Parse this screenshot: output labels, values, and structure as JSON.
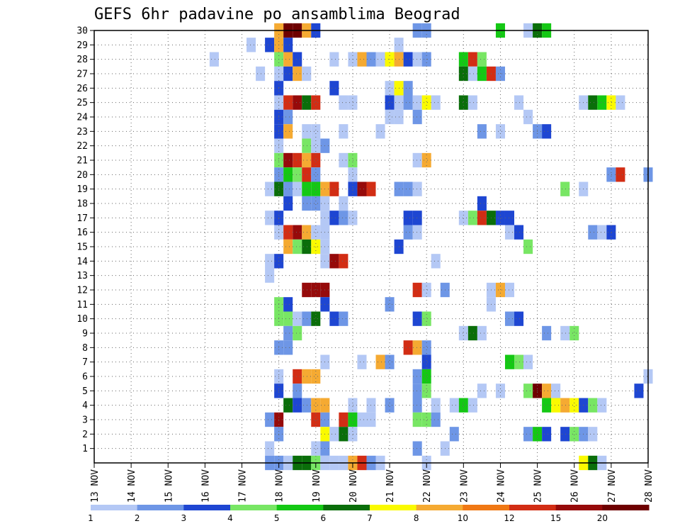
{
  "chart_data": {
    "type": "heatmap",
    "title": "GEFS 6hr padavine po ansamblima Beograd",
    "xlabel": "",
    "ylabel": "",
    "x_ticks": [
      "13 NOV",
      "14 NOV",
      "15 NOV",
      "16 NOV",
      "17 NOV",
      "18 NOV",
      "19 NOV",
      "20 NOV",
      "21 NOV",
      "22 NOV",
      "23 NOV",
      "24 NOV",
      "25 NOV",
      "26 NOV",
      "27 NOV",
      "28 NOV"
    ],
    "y_ticks": [
      "1",
      "2",
      "3",
      "4",
      "5",
      "6",
      "7",
      "8",
      "9",
      "10",
      "11",
      "12",
      "13",
      "14",
      "15",
      "16",
      "17",
      "18",
      "19",
      "20",
      "21",
      "22",
      "23",
      "24",
      "25",
      "26",
      "27",
      "28",
      "29",
      "30"
    ],
    "xlim": [
      0,
      60
    ],
    "ylim": [
      0,
      30
    ],
    "x_unit": "6-hour step from 13 NOV 00Z",
    "grid": true,
    "legend_position": "bottom",
    "legend_colors": [
      "#b4c8f5",
      "#6e96e6",
      "#1e46d2",
      "#78e664",
      "#14c814",
      "#0a6e0a",
      "#fafa00",
      "#f5aa32",
      "#f07814",
      "#d22d14",
      "#960a0a",
      "#6e0000"
    ],
    "legend_labels": [
      "1",
      "2",
      "3",
      "4",
      "5",
      "6",
      "7",
      "8",
      "10",
      "12",
      "15",
      "20"
    ],
    "cells": [
      [
        20,
        30,
        8
      ],
      [
        21,
        30,
        12
      ],
      [
        22,
        30,
        12
      ],
      [
        23,
        30,
        8
      ],
      [
        24,
        30,
        3
      ],
      [
        35,
        30,
        2
      ],
      [
        36,
        30,
        2
      ],
      [
        44,
        30,
        5
      ],
      [
        47,
        30,
        1
      ],
      [
        48,
        30,
        6
      ],
      [
        49,
        30,
        5
      ],
      [
        17,
        29,
        1
      ],
      [
        19,
        29,
        3
      ],
      [
        20,
        29,
        8
      ],
      [
        21,
        29,
        3
      ],
      [
        33,
        29,
        1
      ],
      [
        13,
        28,
        1
      ],
      [
        20,
        28,
        4
      ],
      [
        21,
        28,
        8
      ],
      [
        22,
        28,
        3
      ],
      [
        26,
        28,
        1
      ],
      [
        28,
        28,
        1
      ],
      [
        29,
        28,
        8
      ],
      [
        30,
        28,
        2
      ],
      [
        31,
        28,
        1
      ],
      [
        32,
        28,
        7
      ],
      [
        33,
        28,
        8
      ],
      [
        34,
        28,
        3
      ],
      [
        35,
        28,
        1
      ],
      [
        36,
        28,
        2
      ],
      [
        40,
        28,
        5
      ],
      [
        41,
        28,
        10
      ],
      [
        42,
        28,
        4
      ],
      [
        18,
        27,
        1
      ],
      [
        20,
        27,
        1
      ],
      [
        21,
        27,
        3
      ],
      [
        22,
        27,
        8
      ],
      [
        23,
        27,
        1
      ],
      [
        40,
        27,
        6
      ],
      [
        41,
        27,
        1
      ],
      [
        42,
        27,
        5
      ],
      [
        43,
        27,
        10
      ],
      [
        44,
        27,
        2
      ],
      [
        20,
        26,
        3
      ],
      [
        26,
        26,
        3
      ],
      [
        32,
        26,
        1
      ],
      [
        33,
        26,
        7
      ],
      [
        34,
        26,
        2
      ],
      [
        20,
        25,
        1
      ],
      [
        21,
        25,
        10
      ],
      [
        22,
        25,
        11
      ],
      [
        23,
        25,
        6
      ],
      [
        24,
        25,
        10
      ],
      [
        27,
        25,
        1
      ],
      [
        28,
        25,
        1
      ],
      [
        32,
        25,
        3
      ],
      [
        33,
        25,
        1
      ],
      [
        34,
        25,
        2
      ],
      [
        35,
        25,
        1
      ],
      [
        36,
        25,
        7
      ],
      [
        37,
        25,
        1
      ],
      [
        40,
        25,
        6
      ],
      [
        41,
        25,
        1
      ],
      [
        46,
        25,
        1
      ],
      [
        53,
        25,
        1
      ],
      [
        54,
        25,
        6
      ],
      [
        55,
        25,
        5
      ],
      [
        56,
        25,
        7
      ],
      [
        57,
        25,
        1
      ],
      [
        20,
        24,
        3
      ],
      [
        21,
        24,
        2
      ],
      [
        32,
        24,
        1
      ],
      [
        33,
        24,
        1
      ],
      [
        35,
        24,
        2
      ],
      [
        47,
        24,
        1
      ],
      [
        20,
        23,
        3
      ],
      [
        21,
        23,
        8
      ],
      [
        23,
        23,
        1
      ],
      [
        24,
        23,
        1
      ],
      [
        27,
        23,
        1
      ],
      [
        31,
        23,
        1
      ],
      [
        42,
        23,
        2
      ],
      [
        44,
        23,
        1
      ],
      [
        48,
        23,
        2
      ],
      [
        49,
        23,
        3
      ],
      [
        20,
        22,
        1
      ],
      [
        23,
        22,
        4
      ],
      [
        24,
        22,
        1
      ],
      [
        25,
        22,
        2
      ],
      [
        20,
        21,
        4
      ],
      [
        21,
        21,
        11
      ],
      [
        22,
        21,
        10
      ],
      [
        23,
        21,
        8
      ],
      [
        24,
        21,
        10
      ],
      [
        27,
        21,
        1
      ],
      [
        28,
        21,
        4
      ],
      [
        35,
        21,
        1
      ],
      [
        36,
        21,
        8
      ],
      [
        20,
        20,
        2
      ],
      [
        21,
        20,
        5
      ],
      [
        22,
        20,
        4
      ],
      [
        23,
        20,
        10
      ],
      [
        24,
        20,
        2
      ],
      [
        28,
        20,
        1
      ],
      [
        56,
        20,
        2
      ],
      [
        57,
        20,
        10
      ],
      [
        60,
        20,
        2
      ],
      [
        19,
        19,
        1
      ],
      [
        20,
        19,
        6
      ],
      [
        21,
        19,
        2
      ],
      [
        22,
        19,
        1
      ],
      [
        23,
        19,
        5
      ],
      [
        24,
        19,
        5
      ],
      [
        25,
        19,
        8
      ],
      [
        26,
        19,
        10
      ],
      [
        28,
        19,
        3
      ],
      [
        29,
        19,
        11
      ],
      [
        30,
        19,
        10
      ],
      [
        33,
        19,
        2
      ],
      [
        34,
        19,
        2
      ],
      [
        35,
        19,
        1
      ],
      [
        51,
        19,
        4
      ],
      [
        53,
        19,
        1
      ],
      [
        21,
        18,
        3
      ],
      [
        23,
        18,
        2
      ],
      [
        24,
        18,
        2
      ],
      [
        25,
        18,
        1
      ],
      [
        27,
        18,
        1
      ],
      [
        42,
        18,
        3
      ],
      [
        19,
        17,
        1
      ],
      [
        20,
        17,
        3
      ],
      [
        25,
        17,
        1
      ],
      [
        26,
        17,
        3
      ],
      [
        27,
        17,
        2
      ],
      [
        28,
        17,
        1
      ],
      [
        34,
        17,
        3
      ],
      [
        35,
        17,
        3
      ],
      [
        40,
        17,
        1
      ],
      [
        41,
        17,
        4
      ],
      [
        42,
        17,
        10
      ],
      [
        43,
        17,
        6
      ],
      [
        44,
        17,
        3
      ],
      [
        45,
        17,
        3
      ],
      [
        20,
        16,
        1
      ],
      [
        21,
        16,
        10
      ],
      [
        22,
        16,
        11
      ],
      [
        23,
        16,
        8
      ],
      [
        24,
        16,
        1
      ],
      [
        25,
        16,
        1
      ],
      [
        34,
        16,
        2
      ],
      [
        35,
        16,
        1
      ],
      [
        45,
        16,
        1
      ],
      [
        46,
        16,
        3
      ],
      [
        54,
        16,
        2
      ],
      [
        55,
        16,
        1
      ],
      [
        56,
        16,
        3
      ],
      [
        21,
        15,
        8
      ],
      [
        22,
        15,
        4
      ],
      [
        23,
        15,
        6
      ],
      [
        24,
        15,
        7
      ],
      [
        25,
        15,
        1
      ],
      [
        33,
        15,
        3
      ],
      [
        47,
        15,
        4
      ],
      [
        19,
        14,
        1
      ],
      [
        20,
        14,
        3
      ],
      [
        25,
        14,
        1
      ],
      [
        26,
        14,
        11
      ],
      [
        27,
        14,
        10
      ],
      [
        37,
        14,
        1
      ],
      [
        19,
        13,
        1
      ],
      [
        23,
        12,
        11
      ],
      [
        24,
        12,
        11
      ],
      [
        25,
        12,
        11
      ],
      [
        35,
        12,
        10
      ],
      [
        36,
        12,
        1
      ],
      [
        38,
        12,
        2
      ],
      [
        43,
        12,
        1
      ],
      [
        44,
        12,
        8
      ],
      [
        45,
        12,
        1
      ],
      [
        20,
        11,
        4
      ],
      [
        21,
        11,
        3
      ],
      [
        25,
        11,
        3
      ],
      [
        32,
        11,
        2
      ],
      [
        43,
        11,
        1
      ],
      [
        20,
        10,
        4
      ],
      [
        21,
        10,
        4
      ],
      [
        22,
        10,
        1
      ],
      [
        23,
        10,
        2
      ],
      [
        24,
        10,
        6
      ],
      [
        26,
        10,
        3
      ],
      [
        27,
        10,
        2
      ],
      [
        35,
        10,
        3
      ],
      [
        36,
        10,
        4
      ],
      [
        45,
        10,
        2
      ],
      [
        46,
        10,
        3
      ],
      [
        21,
        9,
        2
      ],
      [
        22,
        9,
        4
      ],
      [
        40,
        9,
        1
      ],
      [
        41,
        9,
        6
      ],
      [
        42,
        9,
        1
      ],
      [
        49,
        9,
        2
      ],
      [
        51,
        9,
        1
      ],
      [
        52,
        9,
        4
      ],
      [
        20,
        8,
        2
      ],
      [
        21,
        8,
        2
      ],
      [
        34,
        8,
        10
      ],
      [
        35,
        8,
        8
      ],
      [
        36,
        8,
        2
      ],
      [
        25,
        7,
        1
      ],
      [
        29,
        7,
        1
      ],
      [
        31,
        7,
        8
      ],
      [
        32,
        7,
        2
      ],
      [
        36,
        7,
        3
      ],
      [
        45,
        7,
        5
      ],
      [
        46,
        7,
        4
      ],
      [
        47,
        7,
        1
      ],
      [
        20,
        6,
        1
      ],
      [
        22,
        6,
        10
      ],
      [
        23,
        6,
        8
      ],
      [
        24,
        6,
        8
      ],
      [
        35,
        6,
        2
      ],
      [
        36,
        6,
        5
      ],
      [
        60,
        6,
        1
      ],
      [
        20,
        5,
        3
      ],
      [
        22,
        5,
        2
      ],
      [
        35,
        5,
        2
      ],
      [
        36,
        5,
        4
      ],
      [
        42,
        5,
        1
      ],
      [
        44,
        5,
        1
      ],
      [
        47,
        5,
        4
      ],
      [
        48,
        5,
        12
      ],
      [
        49,
        5,
        8
      ],
      [
        50,
        5,
        1
      ],
      [
        59,
        5,
        3
      ],
      [
        21,
        4,
        6
      ],
      [
        22,
        4,
        3
      ],
      [
        23,
        4,
        2
      ],
      [
        24,
        4,
        8
      ],
      [
        25,
        4,
        8
      ],
      [
        28,
        4,
        1
      ],
      [
        30,
        4,
        1
      ],
      [
        32,
        4,
        2
      ],
      [
        35,
        4,
        2
      ],
      [
        37,
        4,
        1
      ],
      [
        39,
        4,
        1
      ],
      [
        40,
        4,
        5
      ],
      [
        41,
        4,
        1
      ],
      [
        49,
        4,
        5
      ],
      [
        50,
        4,
        7
      ],
      [
        51,
        4,
        8
      ],
      [
        52,
        4,
        7
      ],
      [
        53,
        4,
        3
      ],
      [
        54,
        4,
        4
      ],
      [
        55,
        4,
        1
      ],
      [
        19,
        3,
        2
      ],
      [
        20,
        3,
        11
      ],
      [
        24,
        3,
        10
      ],
      [
        25,
        3,
        2
      ],
      [
        27,
        3,
        10
      ],
      [
        28,
        3,
        5
      ],
      [
        29,
        3,
        1
      ],
      [
        30,
        3,
        1
      ],
      [
        35,
        3,
        4
      ],
      [
        36,
        3,
        4
      ],
      [
        37,
        3,
        2
      ],
      [
        20,
        2,
        2
      ],
      [
        25,
        2,
        7
      ],
      [
        26,
        2,
        1
      ],
      [
        27,
        2,
        6
      ],
      [
        28,
        2,
        1
      ],
      [
        39,
        2,
        2
      ],
      [
        47,
        2,
        2
      ],
      [
        48,
        2,
        5
      ],
      [
        49,
        2,
        3
      ],
      [
        51,
        2,
        3
      ],
      [
        52,
        2,
        4
      ],
      [
        53,
        2,
        2
      ],
      [
        54,
        2,
        1
      ],
      [
        19,
        1,
        1
      ],
      [
        24,
        1,
        1
      ],
      [
        25,
        1,
        2
      ],
      [
        35,
        1,
        2
      ],
      [
        38,
        1,
        1
      ],
      [
        19,
        0,
        2
      ],
      [
        20,
        0,
        2
      ],
      [
        21,
        0,
        1
      ],
      [
        22,
        0,
        6
      ],
      [
        23,
        0,
        6
      ],
      [
        24,
        0,
        4
      ],
      [
        25,
        0,
        1
      ],
      [
        26,
        0,
        1
      ],
      [
        27,
        0,
        1
      ],
      [
        28,
        0,
        8
      ],
      [
        29,
        0,
        10
      ],
      [
        30,
        0,
        2
      ],
      [
        31,
        0,
        1
      ],
      [
        36,
        0,
        1
      ],
      [
        53,
        0,
        7
      ],
      [
        54,
        0,
        6
      ],
      [
        55,
        0,
        1
      ]
    ]
  }
}
